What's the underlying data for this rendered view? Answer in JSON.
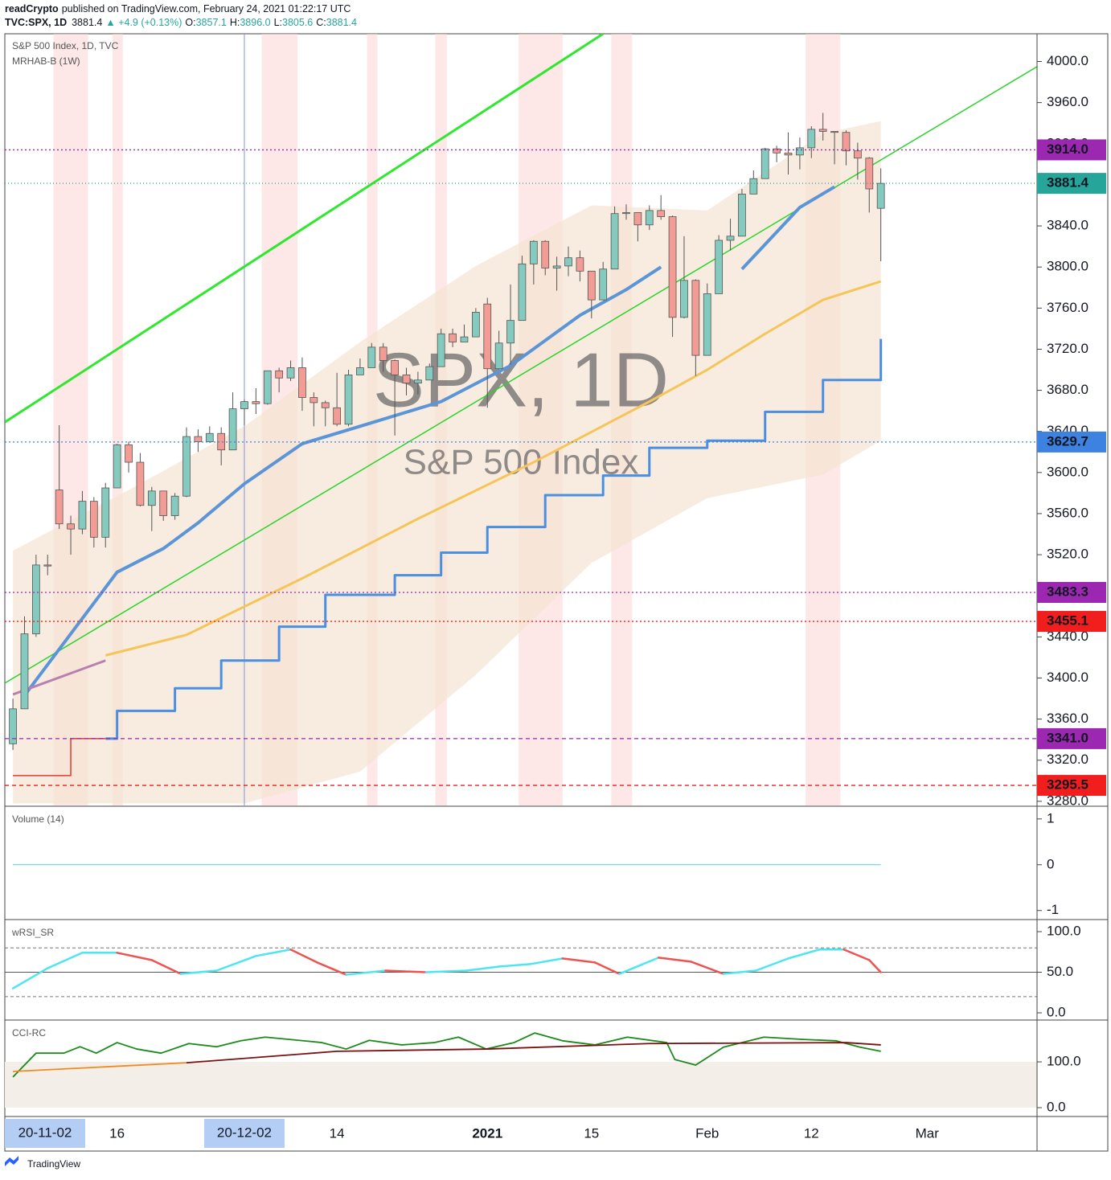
{
  "header": {
    "author": "readCrypto",
    "published": "published on TradingView.com, February 24, 2021 01:22:17 UTC",
    "symbol": "TVC:SPX, 1D",
    "last": "3881.4",
    "change": "▲ +4.9 (+0.13%)",
    "ohlc": [
      {
        "label": "O:",
        "value": "3857.1"
      },
      {
        "label": "H:",
        "value": "3896.0"
      },
      {
        "label": "L:",
        "value": "3805.6"
      },
      {
        "label": "C:",
        "value": "3881.4"
      }
    ]
  },
  "footer": {
    "brand": "TradingView"
  },
  "chart_data": [
    {
      "type": "candlestick",
      "title": "S&P 500 Index, 1D, TVC",
      "subtitle": "MRHAB-B (1W)",
      "watermark": "SPX, 1D",
      "watermark_subtitle": "S&P 500 Index",
      "up_color": "#84cabf",
      "down_color": "#f29c95",
      "open": [
        3336,
        3370,
        3443,
        3510,
        3583,
        3550,
        3545,
        3572,
        3537,
        3585,
        3627,
        3610,
        3568,
        3582,
        3558,
        3577,
        3635,
        3630,
        3638,
        3622,
        3662,
        3669,
        3667,
        3699,
        3692,
        3702,
        3673,
        3668,
        3663,
        3647,
        3695,
        3702,
        3722,
        3709,
        3695,
        3687,
        3690,
        3703,
        3735,
        3727,
        3732,
        3764,
        3701,
        3726,
        3748,
        3803,
        3825,
        3799,
        3801,
        3809,
        3796,
        3768,
        3798,
        3852,
        3853,
        3841,
        3855,
        3849,
        3751,
        3787,
        3714,
        3774,
        3826,
        3830,
        3871,
        3886,
        3915,
        3911,
        3909,
        3916,
        3934,
        3932,
        3931,
        3913,
        3906,
        3857.1
      ],
      "high": [
        3380,
        3460,
        3520,
        3520,
        3646,
        3558,
        3582,
        3576,
        3590,
        3628,
        3630,
        3619,
        3586,
        3582,
        3580,
        3644,
        3642,
        3645,
        3644,
        3678,
        3671,
        3682,
        3699,
        3702,
        3709,
        3712,
        3678,
        3670,
        3697,
        3700,
        3711,
        3726,
        3726,
        3710,
        3702,
        3698,
        3706,
        3740,
        3740,
        3744,
        3760,
        3770,
        3738,
        3783,
        3811,
        3826,
        3826,
        3810,
        3820,
        3816,
        3796,
        3805,
        3859,
        3861,
        3853,
        3860,
        3870,
        3850,
        3830,
        3788,
        3784,
        3831,
        3847,
        3876,
        3894,
        3916,
        3918,
        3931,
        3926,
        3937,
        3950,
        3932,
        3933,
        3921,
        3907,
        3896.0
      ],
      "low": [
        3330,
        3370,
        3440,
        3500,
        3545,
        3520,
        3540,
        3527,
        3527,
        3585,
        3600,
        3567,
        3543,
        3553,
        3554,
        3576,
        3620,
        3629,
        3607,
        3622,
        3646,
        3657,
        3666,
        3678,
        3689,
        3660,
        3645,
        3645,
        3645,
        3645,
        3695,
        3702,
        3698,
        3636,
        3675,
        3676,
        3690,
        3703,
        3722,
        3727,
        3732,
        3663,
        3700,
        3705,
        3748,
        3783,
        3792,
        3777,
        3791,
        3786,
        3750,
        3768,
        3798,
        3846,
        3825,
        3836,
        3846,
        3732,
        3750,
        3694,
        3714,
        3774,
        3816,
        3830,
        3871,
        3886,
        3902,
        3890,
        3895,
        3906,
        3923,
        3900,
        3899,
        3885,
        3853,
        3805.6
      ],
      "close": [
        3370,
        3443,
        3510,
        3509,
        3550,
        3545,
        3572,
        3537,
        3585,
        3627,
        3610,
        3568,
        3582,
        3558,
        3577,
        3635,
        3630,
        3638,
        3622,
        3662,
        3669,
        3667,
        3699,
        3692,
        3702,
        3673,
        3668,
        3663,
        3647,
        3695,
        3702,
        3722,
        3709,
        3695,
        3687,
        3690,
        3703,
        3735,
        3727,
        3732,
        3756,
        3701,
        3726,
        3748,
        3803,
        3825,
        3799,
        3801,
        3809,
        3796,
        3768,
        3798,
        3852,
        3853,
        3841,
        3855,
        3849,
        3751,
        3787,
        3714,
        3774,
        3826,
        3830,
        3871,
        3886,
        3915,
        3911,
        3909,
        3916,
        3934,
        3932,
        3931,
        3913,
        3906,
        3876,
        3881.4
      ],
      "xlim": [
        -0.7,
        88.5
      ],
      "xticks": [
        {
          "value": 9,
          "label": "16"
        },
        {
          "value": 28,
          "label": "14"
        },
        {
          "value": 41,
          "label": "2021",
          "bold": true
        },
        {
          "value": 50,
          "label": "15"
        },
        {
          "value": 60,
          "label": "Feb"
        },
        {
          "value": 69,
          "label": "12"
        },
        {
          "value": 79,
          "label": "Mar"
        }
      ],
      "crosshair": [
        {
          "value": -1,
          "label": "20-11-02"
        },
        {
          "value": 20,
          "label": "20-12-02"
        }
      ],
      "ylim": [
        3276,
        4027
      ],
      "yticks": [
        {
          "value": 3280,
          "label": "3280.0"
        },
        {
          "value": 3320,
          "label": "3320.0"
        },
        {
          "value": 3360,
          "label": "3360.0"
        },
        {
          "value": 3400,
          "label": "3400.0"
        },
        {
          "value": 3440,
          "label": "3440.0"
        },
        {
          "value": 3480,
          "label": "3480.0"
        },
        {
          "value": 3520,
          "label": "3520.0"
        },
        {
          "value": 3560,
          "label": "3560.0"
        },
        {
          "value": 3600,
          "label": "3600.0"
        },
        {
          "value": 3640,
          "label": "3640.0"
        },
        {
          "value": 3680,
          "label": "3680.0"
        },
        {
          "value": 3720,
          "label": "3720.0"
        },
        {
          "value": 3760,
          "label": "3760.0"
        },
        {
          "value": 3800,
          "label": "3800.0"
        },
        {
          "value": 3840,
          "label": "3840.0"
        },
        {
          "value": 3880,
          "label": "3880.0"
        },
        {
          "value": 3920,
          "label": "3920.0"
        },
        {
          "value": 3960,
          "label": "3960.0"
        },
        {
          "value": 4000,
          "label": "4000.0"
        }
      ],
      "grid": false,
      "highlights": {
        "color": "#fbd3d3",
        "from": [
          3.5,
          8.6,
          21.5,
          30.6,
          36.5,
          43.7,
          51.7,
          68.5
        ],
        "to": [
          6.5,
          9.5,
          24.6,
          31.5,
          37.5,
          47.5,
          53.5,
          71.5
        ]
      },
      "envelope": {
        "color": "#f3e4d2",
        "x": [
          0,
          10,
          20,
          30,
          40,
          50,
          60,
          70,
          75
        ],
        "upper": [
          3524,
          3583,
          3645,
          3727,
          3801,
          3860,
          3855,
          3930,
          3942
        ],
        "lower": [
          3278,
          3278,
          3278,
          3309,
          3403,
          3512,
          3575,
          3598,
          3631
        ]
      },
      "series": [
        {
          "color": "#2ee82e",
          "width": 3,
          "x": [
            -0.7,
            51
          ],
          "values": [
            3649,
            4027
          ]
        },
        {
          "color": "#2ad42a",
          "width": 1.5,
          "x": [
            -0.7,
            88.5
          ],
          "values": [
            3395,
            3995
          ]
        },
        {
          "color": "#f5c55a",
          "width": 3,
          "x": [
            8,
            15,
            25,
            35,
            45,
            55,
            60,
            65,
            70,
            75
          ],
          "values": [
            3422,
            3442,
            3497,
            3555,
            3610,
            3669,
            3700,
            3735,
            3768,
            3786
          ]
        },
        {
          "color": "#5b95d8",
          "width": 4,
          "x": [
            1,
            6,
            9,
            13,
            16,
            20,
            25,
            30,
            37,
            43,
            49,
            53,
            56,
            60,
            63,
            68,
            71
          ],
          "values": [
            3383,
            3458,
            3503,
            3526,
            3551,
            3589,
            3628,
            3645,
            3669,
            3704,
            3753,
            3778,
            3800,
            null,
            3798,
            3858,
            3878
          ]
        },
        {
          "color": "#b87fb0",
          "width": 3,
          "x": [
            0,
            8
          ],
          "values": [
            3384,
            3417
          ]
        },
        {
          "color": "#4a8fe0",
          "width": 3,
          "step": true,
          "x": [
            8,
            9,
            14,
            18,
            23,
            27,
            33,
            37,
            41,
            46,
            51,
            55,
            60,
            65,
            70,
            73,
            75
          ],
          "values": [
            3341,
            3368,
            3390,
            3417,
            3450,
            3481,
            3500,
            3522,
            3547,
            3578,
            3597,
            3624,
            3631,
            3659,
            3690,
            3690,
            3730
          ]
        },
        {
          "color": "#e53935",
          "width": 1.5,
          "step": true,
          "x": [
            0,
            4,
            5,
            8
          ],
          "values": [
            3305,
            3305,
            3341,
            3341
          ]
        }
      ],
      "price_lines": [
        {
          "value": 3914.0,
          "label": "3914.0",
          "color": "#9c27b0",
          "dash": "2,3"
        },
        {
          "value": 3881.4,
          "label": "3881.4",
          "color": "#26a69a",
          "dash": "1,3"
        },
        {
          "value": 3629.7,
          "label": "3629.7",
          "color": "#3d82e0",
          "dash": "2,3"
        },
        {
          "value": 3483.3,
          "label": "3483.3",
          "color": "#9c27b0",
          "dash": "2,3"
        },
        {
          "value": 3455.1,
          "label": "3455.1",
          "color": "#f21e1e",
          "dash": "2,3"
        },
        {
          "value": 3341.0,
          "label": "3341.0",
          "color": "#9c27b0",
          "dash": "5,4"
        },
        {
          "value": 3295.5,
          "label": "3295.5",
          "color": "#f21e1e",
          "dash": "5,4"
        }
      ]
    },
    {
      "type": "line",
      "title": "Volume (14)",
      "ylim": [
        -1.18,
        1.26
      ],
      "yticks": [
        1,
        0,
        -1
      ],
      "series": [
        {
          "color": "#4dd0e1",
          "width": 1,
          "x": [
            0,
            75
          ],
          "values": [
            0,
            0
          ]
        }
      ]
    },
    {
      "type": "line",
      "title": "wRSI_SR",
      "ylim": [
        -7.9,
        113.9
      ],
      "yticks": [
        {
          "value": 100,
          "label": "100.0"
        },
        {
          "value": 50,
          "label": "50.0"
        },
        {
          "value": 0,
          "label": "0.0"
        }
      ],
      "levels": [
        80,
        20
      ],
      "midline": 50,
      "series": [
        {
          "rising_color": "#4de6f0",
          "falling_color": "#ef5350",
          "width": 2.5,
          "x": [
            0,
            3,
            6,
            9,
            12,
            14.5,
            17.6,
            21,
            24,
            26.3,
            28.8,
            32.2,
            35.7,
            39.2,
            42,
            44.7,
            47.5,
            50.3,
            52.4,
            55.8,
            58.6,
            61.4,
            64.2,
            67,
            69.7,
            71.8,
            74,
            75
          ],
          "values": [
            30,
            55,
            74,
            74,
            65,
            48,
            52,
            70,
            78,
            62,
            47,
            52,
            50,
            52,
            57,
            60,
            67,
            62,
            48,
            68,
            63,
            48,
            52,
            67,
            78,
            78,
            65,
            50
          ]
        }
      ]
    },
    {
      "type": "line",
      "title": "CCI-RC",
      "ylim": [
        -17.5,
        189.5
      ],
      "yticks": [
        {
          "value": 100,
          "label": "100.0"
        },
        {
          "value": 0,
          "label": "0.0"
        }
      ],
      "zone": {
        "color": "#f3eee7",
        "range": [
          0,
          100
        ]
      },
      "series": [
        {
          "color": "#1b8a1b",
          "width": 1.8,
          "x": [
            0,
            2,
            4.4,
            5.8,
            7.2,
            9,
            10.7,
            12.8,
            15.2,
            17.6,
            19.7,
            21.8,
            23.9,
            26.7,
            28.8,
            30.8,
            33.6,
            36.4,
            38.5,
            40.9,
            43.3,
            45.1,
            47.5,
            50.3,
            53.1,
            56.5,
            57.2,
            59,
            61.4,
            64.9,
            68.3,
            71.1,
            73.2,
            75
          ],
          "values": [
            67,
            119,
            119,
            133,
            119,
            142,
            128,
            119,
            140,
            133,
            146,
            154,
            149,
            142,
            128,
            147,
            137,
            142,
            154,
            128,
            142,
            163,
            146,
            137,
            154,
            142,
            105,
            93,
            132,
            154,
            149,
            146,
            132,
            123
          ]
        },
        {
          "color": "#f08a24",
          "width": 1.8,
          "x": [
            0,
            15
          ],
          "values": [
            79,
            98
          ]
        },
        {
          "color": "#7a1010",
          "width": 1.8,
          "x": [
            15,
            28,
            41,
            55,
            72,
            75
          ],
          "values": [
            98,
            123,
            128,
            140,
            142,
            137
          ]
        }
      ]
    }
  ]
}
